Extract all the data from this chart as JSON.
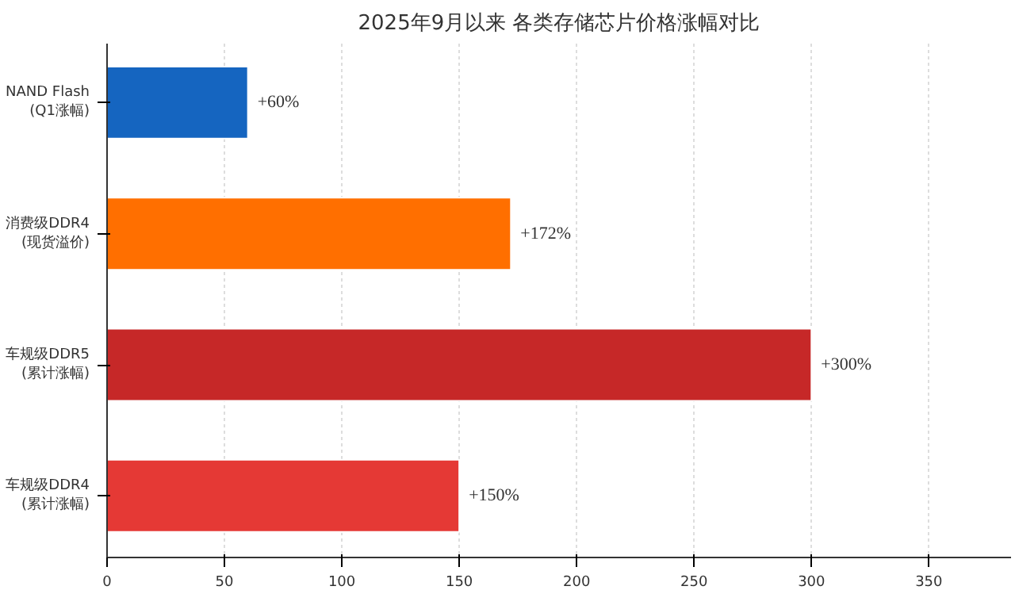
{
  "chart_data": {
    "type": "bar",
    "orientation": "horizontal",
    "title": "2025年9月以来 各类存储芯片价格涨幅对比",
    "categories": [
      "NAND Flash\n(Q1涨幅)",
      "消费级DDR4\n(现货溢价)",
      "车规级DDR5\n(累计涨幅)",
      "车规级DDR4\n(累计涨幅)"
    ],
    "values": [
      60,
      172,
      300,
      150
    ],
    "colors": [
      "#1565c0",
      "#ff6f00",
      "#c62828",
      "#e53935"
    ],
    "value_labels": [
      "+60%",
      "+172%",
      "+300%",
      "+150%"
    ],
    "xlim": [
      0,
      385
    ],
    "xticks": [
      0,
      50,
      100,
      150,
      200,
      250,
      300,
      350
    ],
    "grid": "x"
  }
}
